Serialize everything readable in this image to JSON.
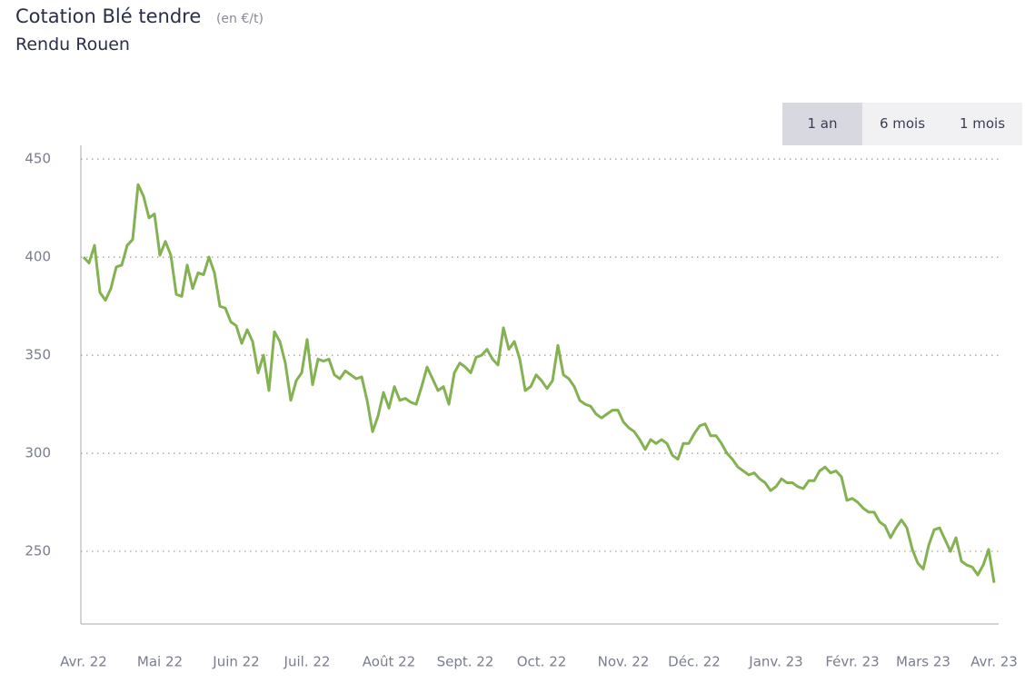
{
  "chart_data": {
    "type": "line",
    "title": "Cotation Blé tendre",
    "unit": "(en €/t)",
    "subtitle": "Rendu Rouen",
    "range_buttons": [
      "1 an",
      "6 mois",
      "1 mois"
    ],
    "active_button": 0,
    "categories": [
      "Avr. 22",
      null,
      null,
      null,
      null,
      null,
      null,
      null,
      null,
      null,
      null,
      null,
      null,
      null,
      "Mai 22",
      null,
      null,
      null,
      null,
      null,
      null,
      null,
      null,
      null,
      null,
      null,
      null,
      null,
      "Juin 22",
      null,
      null,
      null,
      null,
      null,
      null,
      null,
      null,
      null,
      null,
      null,
      null,
      "Juil. 22",
      null,
      null,
      null,
      null,
      null,
      null,
      null,
      null,
      null,
      null,
      null,
      null,
      null,
      null,
      "Août 22",
      null,
      null,
      null,
      null,
      null,
      null,
      null,
      null,
      null,
      null,
      null,
      null,
      null,
      "Sept. 22",
      null,
      null,
      null,
      null,
      null,
      null,
      null,
      null,
      null,
      null,
      null,
      null,
      null,
      "Oct. 22",
      null,
      null,
      null,
      null,
      null,
      null,
      null,
      null,
      null,
      null,
      null,
      null,
      null,
      null,
      "Nov. 22",
      null,
      null,
      null,
      null,
      null,
      null,
      null,
      null,
      null,
      null,
      null,
      null,
      "Déc. 22",
      null,
      null,
      null,
      null,
      null,
      null,
      null,
      null,
      null,
      null,
      null,
      null,
      null,
      null,
      "Janv. 23",
      null,
      null,
      null,
      null,
      null,
      null,
      null,
      null,
      null,
      null,
      null,
      null,
      null,
      "Févr. 23",
      null,
      null,
      null,
      null,
      null,
      null,
      null,
      null,
      null,
      null,
      null,
      null,
      "Mars 23",
      null,
      null,
      null,
      null,
      null,
      null,
      null,
      null,
      null,
      null,
      null,
      null,
      "Avr. 23"
    ],
    "series": [
      {
        "color": "#84b151",
        "values": [
          400,
          397,
          406,
          382,
          378,
          384,
          395,
          396,
          406,
          409,
          437,
          431,
          420,
          422,
          401,
          408,
          401,
          381,
          380,
          396,
          384,
          392,
          391,
          400,
          392,
          375,
          374,
          367,
          365,
          356,
          363,
          357,
          341,
          350,
          332,
          362,
          357,
          346,
          327,
          337,
          341,
          358,
          335,
          348,
          347,
          348,
          340,
          338,
          342,
          340,
          338,
          339,
          327,
          311,
          319,
          331,
          323,
          334,
          327,
          328,
          326,
          325,
          334,
          344,
          338,
          332,
          334,
          325,
          341,
          346,
          344,
          341,
          349,
          350,
          353,
          348,
          345,
          364,
          353,
          357,
          348,
          332,
          334,
          340,
          337,
          333,
          337,
          355,
          340,
          338,
          334,
          327,
          325,
          324,
          320,
          318,
          320,
          322,
          322,
          316,
          313,
          311,
          307,
          302,
          307,
          305,
          307,
          305,
          299,
          297,
          305,
          305,
          310,
          314,
          315,
          309,
          309,
          305,
          300,
          297,
          293,
          291,
          289,
          290,
          287,
          285,
          281,
          283,
          287,
          285,
          285,
          283,
          282,
          286,
          286,
          291,
          293,
          290,
          291,
          288,
          276,
          277,
          275,
          272,
          270,
          270,
          265,
          263,
          257,
          262,
          266,
          262,
          251,
          244,
          241,
          253,
          261,
          262,
          256,
          250,
          257,
          245,
          243,
          242,
          238,
          243,
          251,
          234
        ]
      }
    ],
    "ylim": [
      213,
      457
    ],
    "yticks": [
      250,
      300,
      350,
      400,
      450
    ],
    "grid": true
  }
}
